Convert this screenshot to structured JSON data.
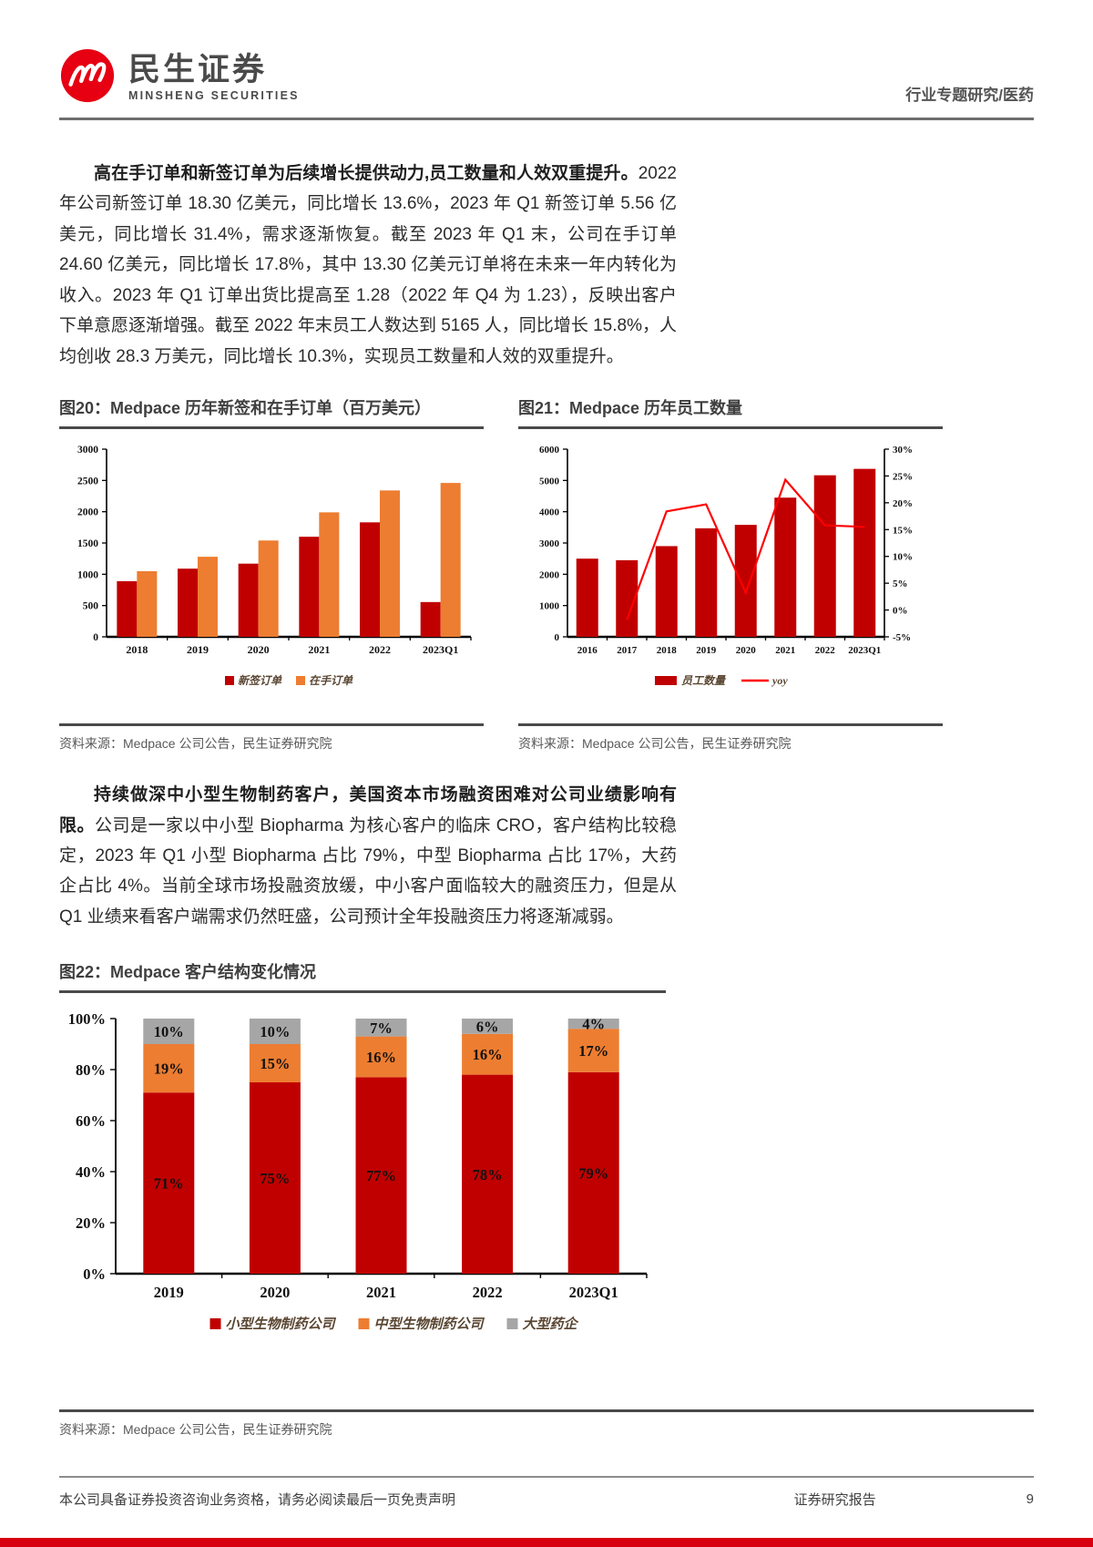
{
  "header": {
    "brand_cn": "民生证券",
    "brand_en": "MINSHENG SECURITIES",
    "doc_type": "行业专题研究/医药"
  },
  "paragraphs": {
    "p1_bold": "高在手订单和新签订单为后续增长提供动力,员工数量和人效双重提升。",
    "p1_rest": "2022 年公司新签订单 18.30 亿美元，同比增长 13.6%，2023 年 Q1 新签订单 5.56 亿美元，同比增长 31.4%，需求逐渐恢复。截至 2023 年 Q1 末，公司在手订单 24.60 亿美元，同比增长 17.8%，其中 13.30 亿美元订单将在未来一年内转化为收入。2023 年 Q1 订单出货比提高至 1.28（2022 年 Q4 为 1.23），反映出客户下单意愿逐渐增强。截至 2022 年末员工人数达到 5165 人，同比增长 15.8%，人均创收 28.3 万美元，同比增长 10.3%，实现员工数量和人效的双重提升。",
    "p2_bold": "持续做深中小型生物制药客户，美国资本市场融资困难对公司业绩影响有限。",
    "p2_rest": "公司是一家以中小型 Biopharma 为核心客户的临床 CRO，客户结构比较稳定，2023 年 Q1 小型 Biopharma 占比 79%，中型 Biopharma 占比 17%，大药企占比 4%。当前全球市场投融资放缓，中小客户面临较大的融资压力，但是从 Q1 业绩来看客户端需求仍然旺盛，公司预计全年投融资压力将逐渐减弱。"
  },
  "chart_data": [
    {
      "id": "fig20",
      "type": "bar",
      "title": "图20：Medpace 历年新签和在手订单（百万美元）",
      "categories": [
        "2018",
        "2019",
        "2020",
        "2021",
        "2022",
        "2023Q1"
      ],
      "series": [
        {
          "name": "新签订单",
          "color": "#C00000",
          "values": [
            890,
            1090,
            1170,
            1600,
            1830,
            556
          ]
        },
        {
          "name": "在手订单",
          "color": "#ED7D31",
          "values": [
            1050,
            1280,
            1540,
            1990,
            2340,
            2460
          ]
        }
      ],
      "ylim": [
        0,
        3000
      ],
      "ytick": 500,
      "grid": false,
      "legend_position": "bottom",
      "source": "资料来源：Medpace 公司公告，民生证券研究院"
    },
    {
      "id": "fig21",
      "type": "bar+line",
      "title": "图21：Medpace 历年员工数量",
      "categories": [
        "2016",
        "2017",
        "2018",
        "2019",
        "2020",
        "2021",
        "2022",
        "2023Q1"
      ],
      "bar_series": {
        "name": "员工数量",
        "color": "#C00000",
        "values": [
          2500,
          2450,
          2900,
          3470,
          3580,
          4450,
          5165,
          5370
        ]
      },
      "line_series": {
        "name": "yoy",
        "color": "#FF0000",
        "values": [
          null,
          -1.8,
          18.4,
          19.7,
          3.2,
          24.3,
          15.8,
          15.5
        ]
      },
      "ylim_left": [
        0,
        6000
      ],
      "ytick_left": 1000,
      "ylim_right": [
        -5,
        30
      ],
      "ytick_right": 5,
      "grid": false,
      "legend_position": "bottom",
      "source": "资料来源：Medpace 公司公告，民生证券研究院"
    },
    {
      "id": "fig22",
      "type": "stacked-bar-100",
      "title": "图22：Medpace 客户结构变化情况",
      "categories": [
        "2019",
        "2020",
        "2021",
        "2022",
        "2023Q1"
      ],
      "series": [
        {
          "name": "小型生物制药公司",
          "color": "#C00000",
          "values": [
            71,
            75,
            77,
            78,
            79
          ]
        },
        {
          "name": "中型生物制药公司",
          "color": "#ED7D31",
          "values": [
            19,
            15,
            16,
            16,
            17
          ]
        },
        {
          "name": "大型药企",
          "color": "#A6A6A6",
          "values": [
            10,
            10,
            7,
            6,
            4
          ]
        }
      ],
      "data_labels": true,
      "ylim": [
        0,
        100
      ],
      "ytick": 20,
      "grid": false,
      "legend_position": "bottom",
      "source": "资料来源：Medpace 公司公告，民生证券研究院"
    }
  ],
  "footer": {
    "disclaimer": "本公司具备证券投资咨询业务资格，请务必阅读最后一页免责声明",
    "doc_label": "证券研究报告",
    "page_number": "9"
  }
}
